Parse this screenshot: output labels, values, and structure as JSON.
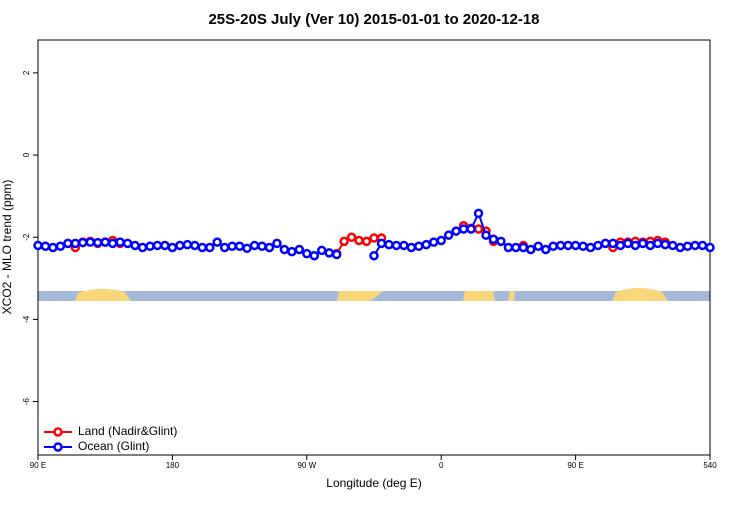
{
  "chart_data": {
    "type": "line",
    "title": "25S-20S July (Ver 10)   2015-01-01 to 2020-12-18",
    "x_label": "Longitude (deg E)",
    "y_label": "XCO2 - MLO trend (ppm)",
    "x": [
      90,
      95,
      100,
      105,
      110,
      115,
      120,
      125,
      130,
      135,
      140,
      145,
      150,
      155,
      160,
      165,
      170,
      175,
      180,
      185,
      190,
      195,
      200,
      205,
      210,
      215,
      220,
      225,
      230,
      235,
      240,
      245,
      250,
      255,
      260,
      265,
      270,
      275,
      280,
      285,
      290,
      295,
      300,
      305,
      310,
      315,
      320,
      325,
      330,
      335,
      340,
      345,
      350,
      355,
      360,
      365,
      370,
      375,
      380,
      385,
      390,
      395,
      400,
      405,
      410,
      415,
      420,
      425,
      430,
      435,
      440,
      445,
      450,
      455,
      460,
      465,
      470,
      475,
      480,
      485,
      490,
      495,
      500,
      505,
      510,
      515,
      520,
      525,
      530,
      535,
      540
    ],
    "series": [
      {
        "name": "Land (Nadir&Glint)",
        "color": "#ff0000",
        "values": [
          null,
          null,
          null,
          null,
          null,
          -2.25,
          -2.12,
          -2.1,
          -2.15,
          -2.12,
          -2.08,
          -2.15,
          null,
          null,
          null,
          null,
          null,
          null,
          null,
          null,
          null,
          null,
          null,
          null,
          null,
          null,
          null,
          null,
          null,
          null,
          null,
          null,
          null,
          null,
          null,
          null,
          null,
          null,
          null,
          null,
          -2.4,
          -2.1,
          -2.0,
          -2.08,
          -2.1,
          -2.02,
          -2.02,
          null,
          null,
          null,
          null,
          null,
          null,
          null,
          null,
          null,
          null,
          -1.72,
          -1.78,
          -1.8,
          -1.85,
          -2.1,
          null,
          null,
          null,
          -2.2,
          null,
          null,
          null,
          null,
          null,
          null,
          null,
          null,
          null,
          null,
          null,
          -2.25,
          -2.12,
          -2.12,
          -2.1,
          -2.12,
          -2.1,
          -2.08,
          -2.12,
          null,
          null,
          null,
          null,
          null,
          null
        ]
      },
      {
        "name": "Ocean (Glint)",
        "color": "#0000ff",
        "values": [
          -2.2,
          -2.22,
          -2.25,
          -2.22,
          -2.15,
          -2.15,
          -2.13,
          -2.12,
          -2.13,
          -2.12,
          -2.15,
          -2.12,
          -2.15,
          -2.2,
          -2.25,
          -2.22,
          -2.2,
          -2.2,
          -2.25,
          -2.2,
          -2.18,
          -2.2,
          -2.25,
          -2.25,
          -2.12,
          -2.25,
          -2.22,
          -2.22,
          -2.27,
          -2.2,
          -2.22,
          -2.25,
          -2.15,
          -2.3,
          -2.35,
          -2.3,
          -2.4,
          -2.45,
          -2.32,
          -2.38,
          -2.42,
          null,
          null,
          null,
          null,
          -2.45,
          -2.15,
          -2.18,
          -2.2,
          -2.2,
          -2.25,
          -2.22,
          -2.18,
          -2.12,
          -2.08,
          -1.95,
          -1.85,
          -1.8,
          -1.8,
          -1.42,
          -1.95,
          -2.05,
          -2.1,
          -2.25,
          -2.25,
          -2.25,
          -2.3,
          -2.22,
          -2.3,
          -2.22,
          -2.2,
          -2.2,
          -2.2,
          -2.22,
          -2.25,
          -2.2,
          -2.15,
          -2.15,
          -2.2,
          -2.15,
          -2.2,
          -2.15,
          -2.2,
          -2.15,
          -2.18,
          -2.2,
          -2.25,
          -2.22,
          -2.2,
          -2.2,
          -2.25
        ]
      }
    ],
    "xlim": [
      90,
      540
    ],
    "xticks": [
      {
        "value": 90,
        "label": "90 E"
      },
      180,
      {
        "value": 270,
        "label": "90 W"
      },
      {
        "value": 360,
        "label": "0"
      },
      {
        "value": 450,
        "label": "90 E"
      },
      540
    ],
    "ylim": [
      -7.3,
      2.8
    ],
    "yticks": [
      -6,
      -4,
      -2,
      0,
      2
    ],
    "legend": "lower left"
  }
}
